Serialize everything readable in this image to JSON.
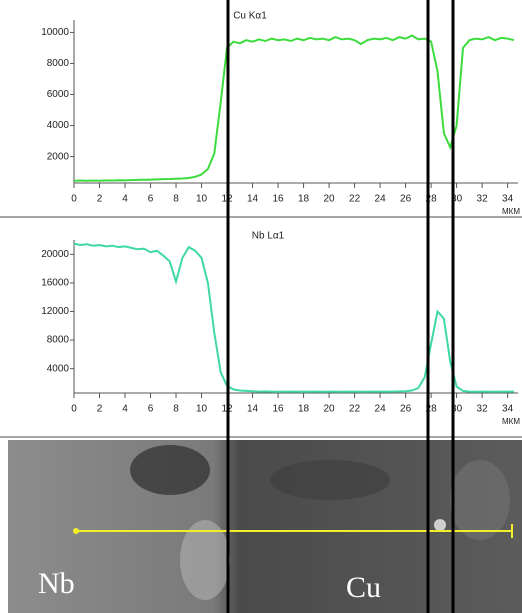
{
  "chart_data": [
    {
      "type": "line",
      "title": "Cu Kα1",
      "xlabel": "МКМ",
      "x": [
        0,
        0.5,
        1,
        1.5,
        2,
        2.5,
        3,
        3.5,
        4,
        4.5,
        5,
        5.5,
        6,
        6.5,
        7,
        7.5,
        8,
        8.5,
        9,
        9.5,
        10,
        10.5,
        11,
        11.5,
        12,
        12.5,
        13,
        13.5,
        14,
        14.5,
        15,
        15.5,
        16,
        16.5,
        17,
        17.5,
        18,
        18.5,
        19,
        19.5,
        20,
        20.5,
        21,
        21.5,
        22,
        22.5,
        23,
        23.5,
        24,
        24.5,
        25,
        25.5,
        26,
        26.5,
        27,
        27.5,
        28,
        28.5,
        29,
        29.5,
        30,
        30.5,
        31,
        31.5,
        32,
        32.5,
        33,
        33.5,
        34,
        34.5
      ],
      "series": [
        {
          "name": "Cu Kα1",
          "color": "#3ddc3d",
          "values": [
            450,
            460,
            440,
            460,
            450,
            470,
            460,
            480,
            470,
            490,
            500,
            510,
            520,
            530,
            550,
            560,
            580,
            590,
            620,
            700,
            850,
            1200,
            2200,
            5500,
            9000,
            9400,
            9300,
            9500,
            9400,
            9550,
            9450,
            9600,
            9500,
            9550,
            9450,
            9600,
            9500,
            9650,
            9550,
            9600,
            9500,
            9700,
            9550,
            9600,
            9500,
            9250,
            9500,
            9600,
            9550,
            9650,
            9500,
            9700,
            9600,
            9800,
            9550,
            9600,
            9400,
            7500,
            3500,
            2600,
            4000,
            9000,
            9500,
            9600,
            9550,
            9700,
            9500,
            9650,
            9600,
            9500
          ]
        }
      ],
      "xlim": [
        0,
        34.5
      ],
      "xticks": [
        0,
        2,
        4,
        6,
        8,
        10,
        12,
        14,
        16,
        18,
        20,
        22,
        24,
        26,
        28,
        30,
        32,
        34
      ],
      "ylim": [
        300,
        10800
      ],
      "yticks": [
        2000,
        4000,
        6000,
        8000,
        10000
      ]
    },
    {
      "type": "line",
      "title": "Nb Lα1",
      "xlabel": "МКМ",
      "x": [
        0,
        0.5,
        1,
        1.5,
        2,
        2.5,
        3,
        3.5,
        4,
        4.5,
        5,
        5.5,
        6,
        6.5,
        7,
        7.5,
        8,
        8.5,
        9,
        9.5,
        10,
        10.5,
        11,
        11.5,
        12,
        12.5,
        13,
        13.5,
        14,
        14.5,
        15,
        15.5,
        16,
        16.5,
        17,
        17.5,
        18,
        18.5,
        19,
        19.5,
        20,
        20.5,
        21,
        21.5,
        22,
        22.5,
        23,
        23.5,
        24,
        24.5,
        25,
        25.5,
        26,
        26.5,
        27,
        27.5,
        28,
        28.5,
        29,
        29.5,
        30,
        30.5,
        31,
        31.5,
        32,
        32.5,
        33,
        33.5,
        34,
        34.5
      ],
      "series": [
        {
          "name": "Nb Lα1",
          "color": "#3fd9a0",
          "values": [
            21500,
            21300,
            21400,
            21200,
            21300,
            21100,
            21200,
            21000,
            21100,
            20900,
            20700,
            20800,
            20300,
            20500,
            19800,
            19000,
            16200,
            19500,
            21000,
            20500,
            19500,
            16000,
            9000,
            3500,
            1600,
            1100,
            950,
            900,
            850,
            800,
            820,
            800,
            780,
            800,
            790,
            800,
            780,
            790,
            800,
            780,
            790,
            800,
            780,
            790,
            800,
            780,
            790,
            800,
            790,
            800,
            800,
            820,
            850,
            950,
            1300,
            2800,
            7500,
            12000,
            11000,
            5000,
            1500,
            900,
            800,
            780,
            790,
            800,
            780,
            790,
            800,
            790
          ]
        }
      ],
      "xlim": [
        0,
        34.5
      ],
      "xticks": [
        0,
        2,
        4,
        6,
        8,
        10,
        12,
        14,
        16,
        18,
        20,
        22,
        24,
        26,
        28,
        30,
        32,
        34
      ],
      "ylim": [
        600,
        22000
      ],
      "yticks": [
        4000,
        8000,
        12000,
        16000,
        20000
      ]
    }
  ],
  "image": {
    "labels": [
      "Nb",
      "Cu"
    ]
  }
}
